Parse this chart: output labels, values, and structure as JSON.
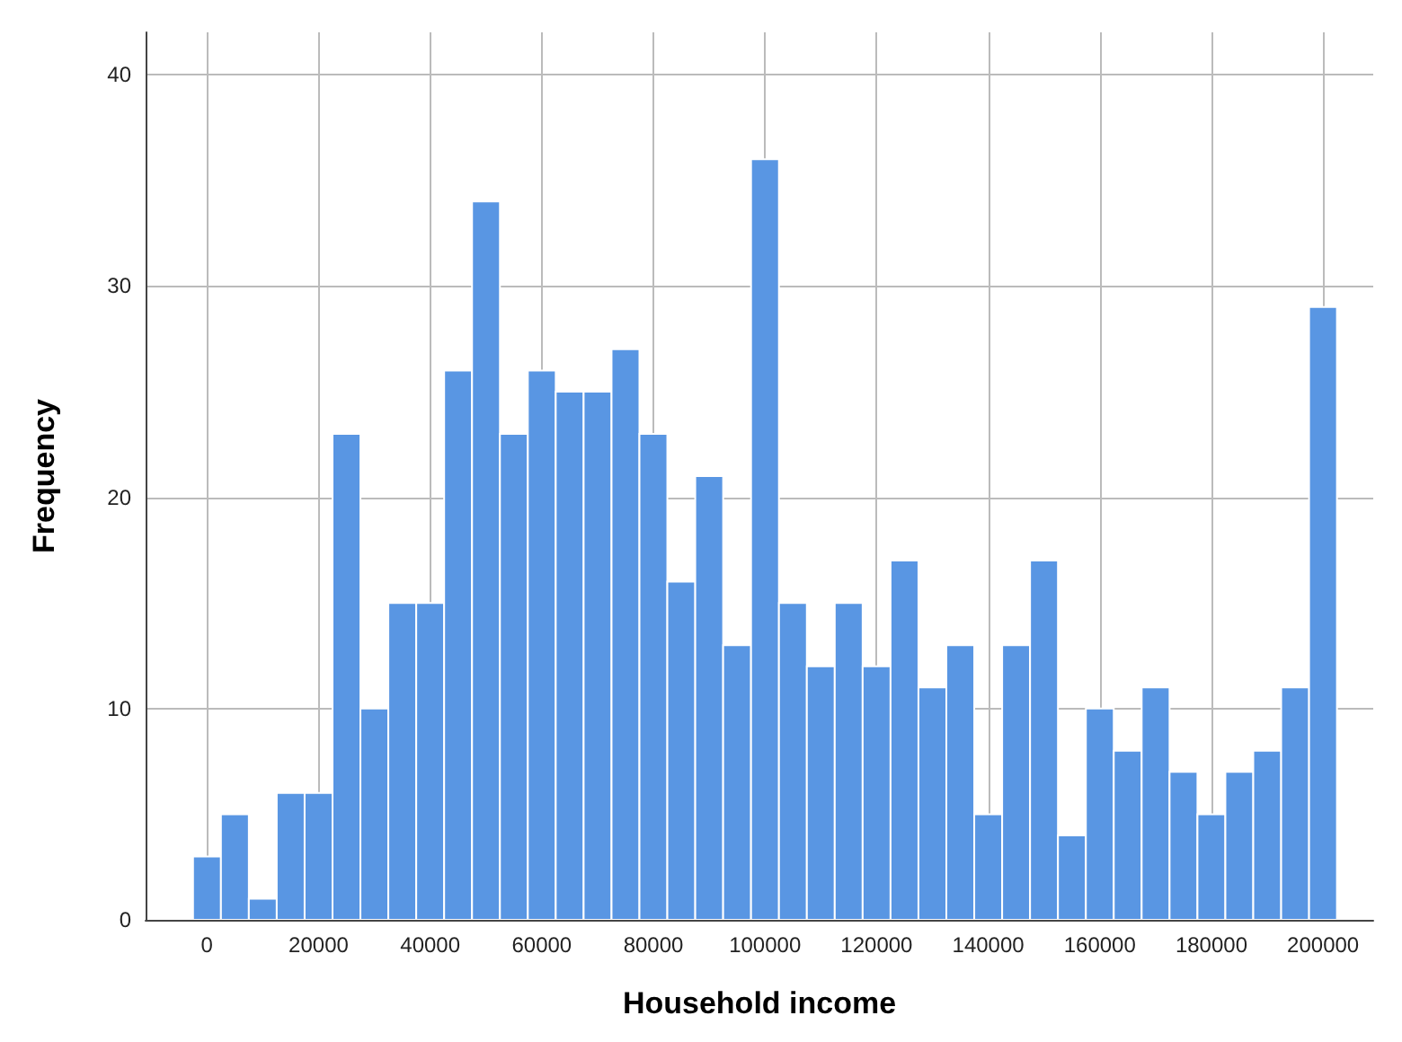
{
  "chart_data": {
    "type": "histogram",
    "xlabel": "Household income",
    "ylabel": "Frequency",
    "bins": [
      -2500,
      2500,
      7500,
      12500,
      17500,
      22500,
      27500,
      32500,
      37500,
      42500,
      47500,
      52500,
      57500,
      62500,
      67500,
      72500,
      77500,
      82500,
      87500,
      92500,
      97500,
      102500,
      107500,
      112500,
      117500,
      122500,
      127500,
      132500,
      137500,
      142500,
      147500,
      152500,
      157500,
      162500,
      167500,
      172500,
      177500,
      182500,
      187500,
      192500,
      197500,
      202500
    ],
    "values": [
      3,
      5,
      1,
      6,
      6,
      23,
      10,
      15,
      15,
      26,
      34,
      23,
      26,
      25,
      25,
      27,
      23,
      16,
      21,
      13,
      36,
      15,
      12,
      15,
      12,
      17,
      11,
      13,
      5,
      13,
      17,
      4,
      10,
      8,
      11,
      7,
      5,
      7,
      8,
      11,
      29
    ],
    "color": "#5996e3",
    "xlim": [
      -11000,
      209000
    ],
    "xticks": [
      0,
      20000,
      40000,
      60000,
      80000,
      100000,
      120000,
      140000,
      160000,
      180000,
      200000
    ],
    "ylim": [
      0,
      42
    ],
    "yticks": [
      0,
      10,
      20,
      30,
      40
    ],
    "grid": true
  }
}
